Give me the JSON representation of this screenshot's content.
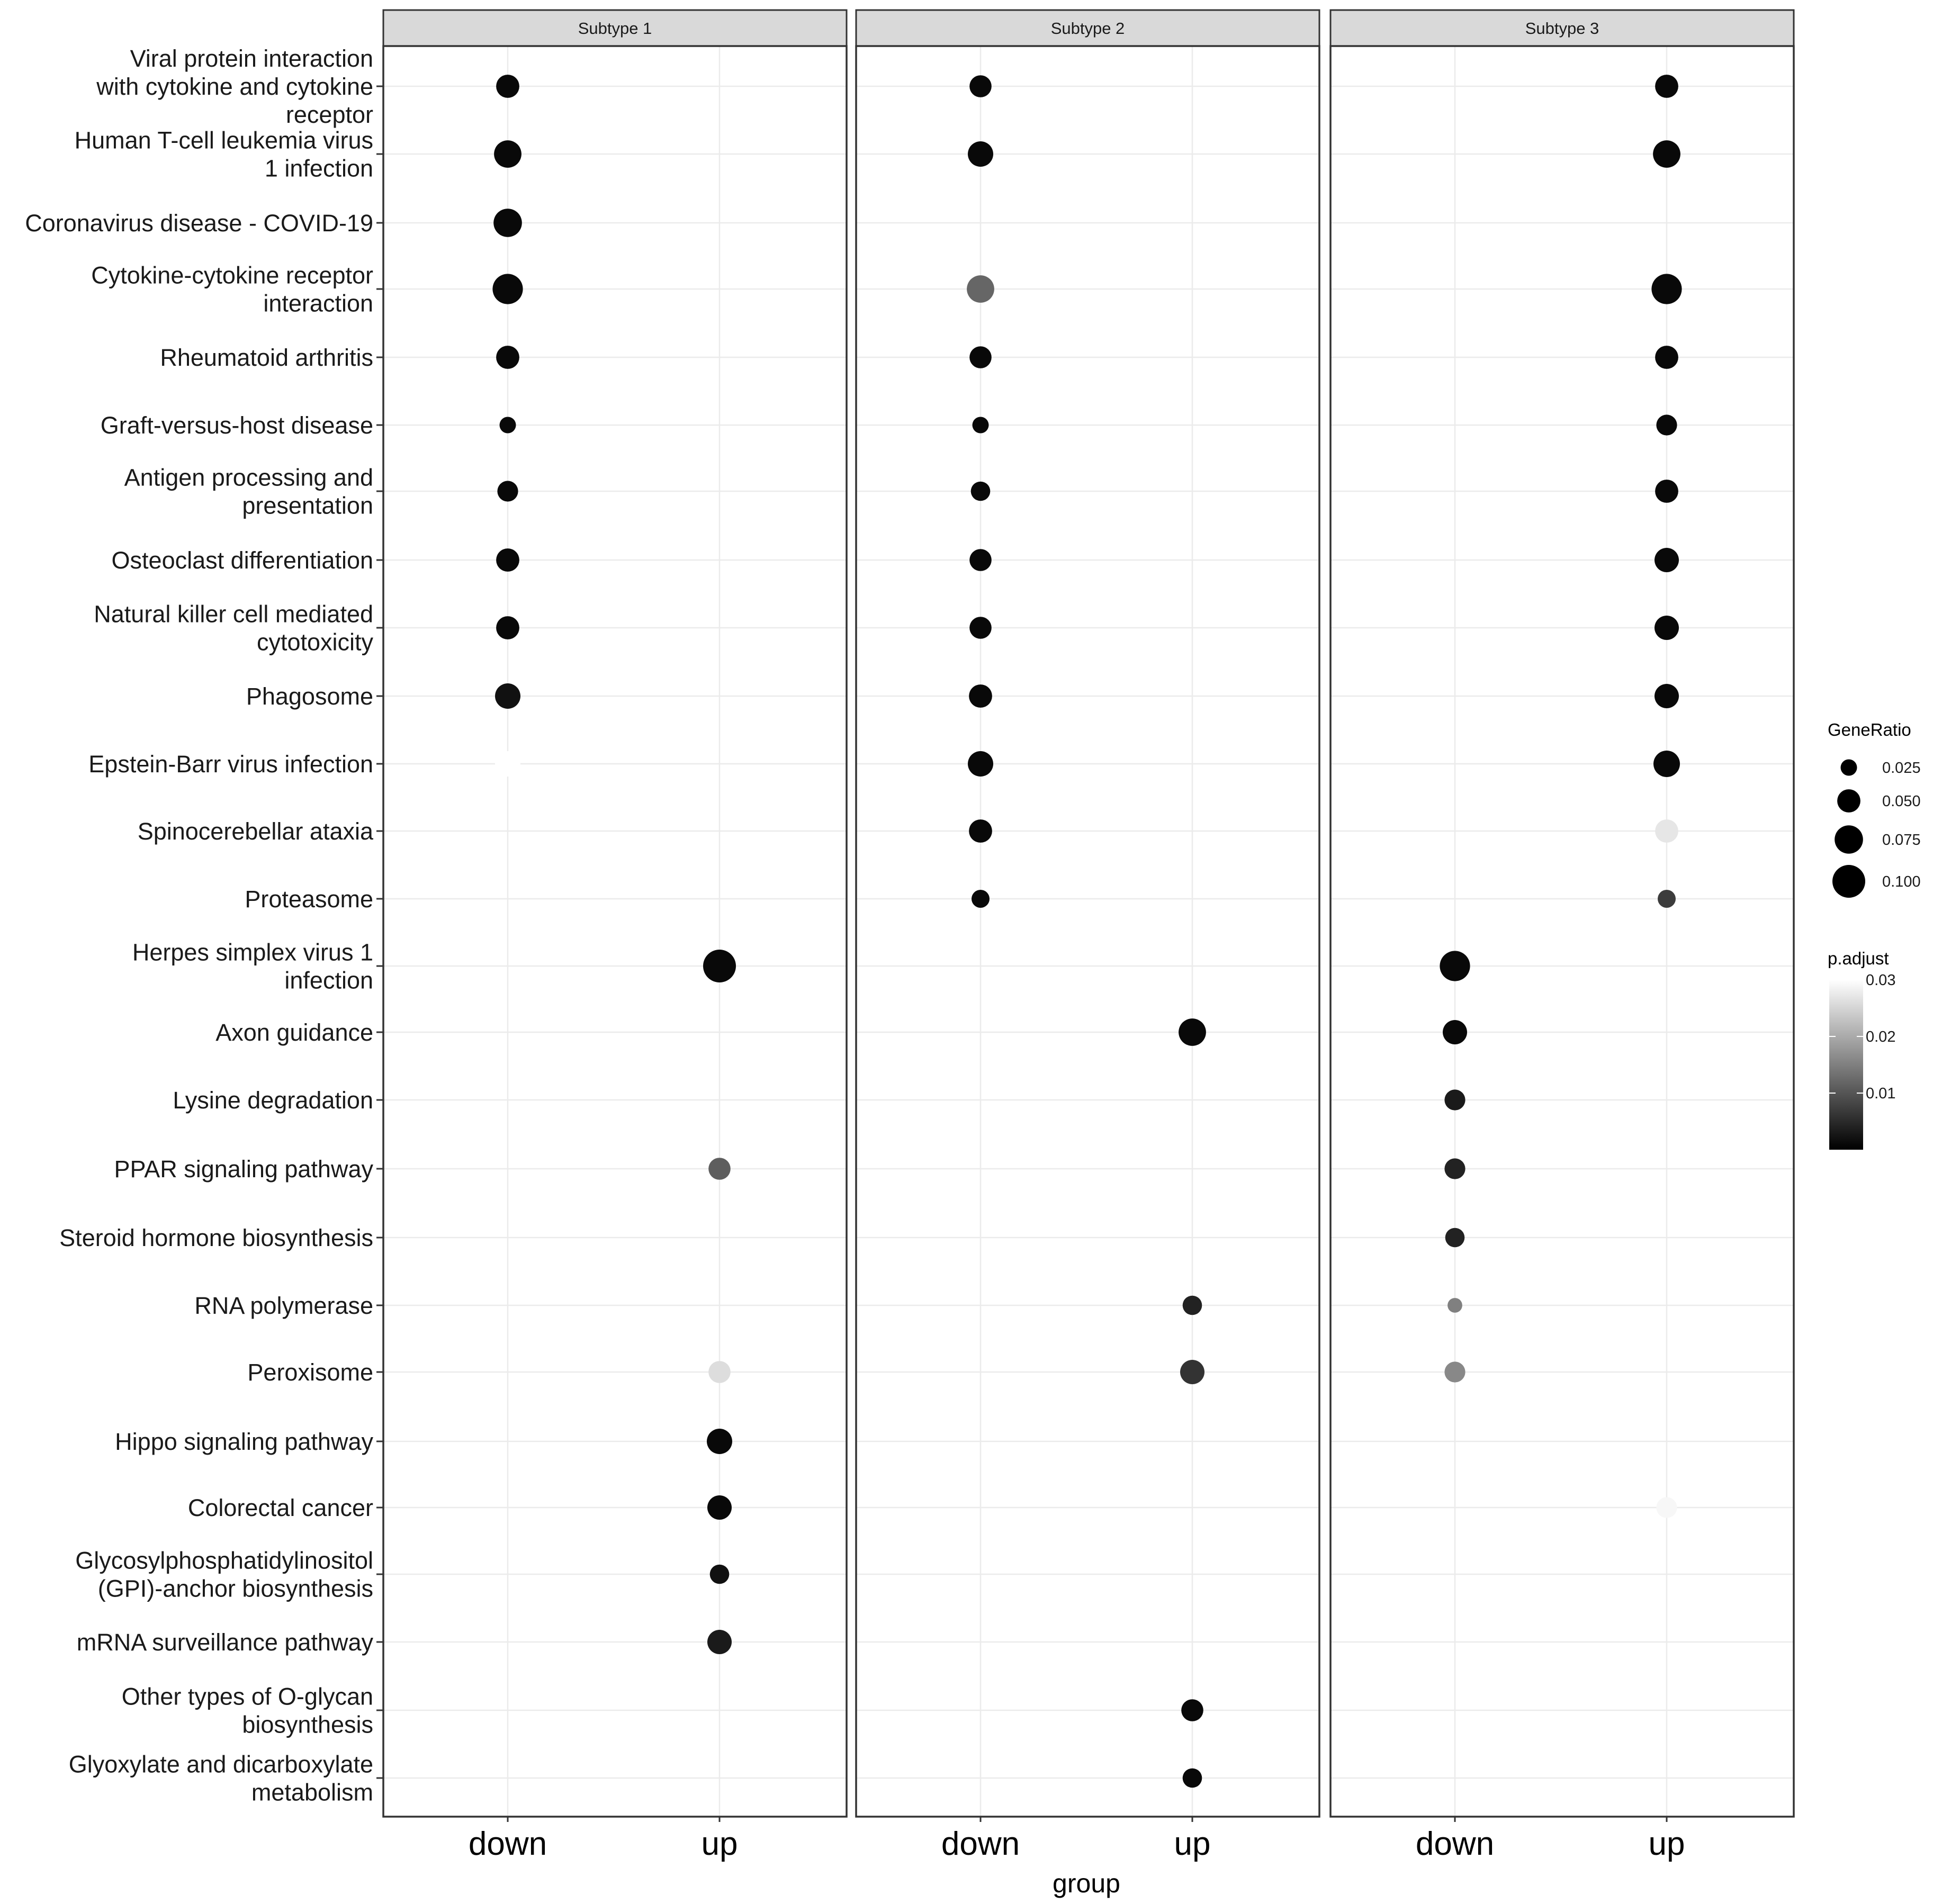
{
  "chart_data": {
    "type": "dotplot",
    "title": "",
    "xlabel": "group",
    "ylabel": "",
    "x_categories": [
      "down",
      "up"
    ],
    "panels": [
      "Subtype  1",
      "Subtype  2",
      "Subtype  3"
    ],
    "y_categories": [
      "Viral protein interaction\nwith cytokine and cytokine\nreceptor",
      "Human T-cell leukemia virus\n1 infection",
      "Coronavirus disease - COVID-19",
      "Cytokine-cytokine receptor\ninteraction",
      "Rheumatoid arthritis",
      "Graft-versus-host disease",
      "Antigen processing and\npresentation",
      "Osteoclast differentiation",
      "Natural killer cell mediated\ncytotoxicity",
      "Phagosome",
      "Epstein-Barr virus infection",
      "Spinocerebellar ataxia",
      "Proteasome",
      "Herpes simplex virus 1\ninfection",
      "Axon guidance",
      "Lysine degradation",
      "PPAR signaling pathway",
      "Steroid hormone biosynthesis",
      "RNA polymerase",
      "Peroxisome",
      "Hippo signaling pathway",
      "Colorectal cancer",
      "Glycosylphosphatidylinositol\n(GPI)-anchor biosynthesis",
      "mRNA surveillance pathway",
      "Other types of O-glycan\nbiosynthesis",
      "Glyoxylate and dicarboxylate\nmetabolism"
    ],
    "points": [
      {
        "panel": 0,
        "group": "down",
        "term": 0,
        "gene_ratio": 0.05,
        "p_adjust": 0.001
      },
      {
        "panel": 0,
        "group": "down",
        "term": 1,
        "gene_ratio": 0.07,
        "p_adjust": 0.001
      },
      {
        "panel": 0,
        "group": "down",
        "term": 2,
        "gene_ratio": 0.075,
        "p_adjust": 0.001
      },
      {
        "panel": 0,
        "group": "down",
        "term": 3,
        "gene_ratio": 0.085,
        "p_adjust": 0.001
      },
      {
        "panel": 0,
        "group": "down",
        "term": 4,
        "gene_ratio": 0.05,
        "p_adjust": 0.001
      },
      {
        "panel": 0,
        "group": "down",
        "term": 5,
        "gene_ratio": 0.025,
        "p_adjust": 0.001
      },
      {
        "panel": 0,
        "group": "down",
        "term": 6,
        "gene_ratio": 0.04,
        "p_adjust": 0.001
      },
      {
        "panel": 0,
        "group": "down",
        "term": 7,
        "gene_ratio": 0.05,
        "p_adjust": 0.001
      },
      {
        "panel": 0,
        "group": "down",
        "term": 8,
        "gene_ratio": 0.05,
        "p_adjust": 0.001
      },
      {
        "panel": 0,
        "group": "down",
        "term": 9,
        "gene_ratio": 0.06,
        "p_adjust": 0.002
      },
      {
        "panel": 0,
        "group": "down",
        "term": 10,
        "gene_ratio": 0.06,
        "p_adjust": 0.034
      },
      {
        "panel": 0,
        "group": "up",
        "term": 13,
        "gene_ratio": 0.1,
        "p_adjust": 0.001
      },
      {
        "panel": 0,
        "group": "up",
        "term": 16,
        "gene_ratio": 0.045,
        "p_adjust": 0.011
      },
      {
        "panel": 0,
        "group": "up",
        "term": 19,
        "gene_ratio": 0.045,
        "p_adjust": 0.026
      },
      {
        "panel": 0,
        "group": "up",
        "term": 20,
        "gene_ratio": 0.06,
        "p_adjust": 0.001
      },
      {
        "panel": 0,
        "group": "up",
        "term": 21,
        "gene_ratio": 0.055,
        "p_adjust": 0.001
      },
      {
        "panel": 0,
        "group": "up",
        "term": 22,
        "gene_ratio": 0.035,
        "p_adjust": 0.002
      },
      {
        "panel": 0,
        "group": "up",
        "term": 23,
        "gene_ratio": 0.055,
        "p_adjust": 0.003
      },
      {
        "panel": 1,
        "group": "down",
        "term": 0,
        "gene_ratio": 0.045,
        "p_adjust": 0.001
      },
      {
        "panel": 1,
        "group": "down",
        "term": 1,
        "gene_ratio": 0.06,
        "p_adjust": 0.001
      },
      {
        "panel": 1,
        "group": "down",
        "term": 3,
        "gene_ratio": 0.07,
        "p_adjust": 0.012
      },
      {
        "panel": 1,
        "group": "down",
        "term": 4,
        "gene_ratio": 0.045,
        "p_adjust": 0.001
      },
      {
        "panel": 1,
        "group": "down",
        "term": 5,
        "gene_ratio": 0.025,
        "p_adjust": 0.001
      },
      {
        "panel": 1,
        "group": "down",
        "term": 6,
        "gene_ratio": 0.035,
        "p_adjust": 0.001
      },
      {
        "panel": 1,
        "group": "down",
        "term": 7,
        "gene_ratio": 0.045,
        "p_adjust": 0.001
      },
      {
        "panel": 1,
        "group": "down",
        "term": 8,
        "gene_ratio": 0.045,
        "p_adjust": 0.001
      },
      {
        "panel": 1,
        "group": "down",
        "term": 9,
        "gene_ratio": 0.05,
        "p_adjust": 0.001
      },
      {
        "panel": 1,
        "group": "down",
        "term": 10,
        "gene_ratio": 0.06,
        "p_adjust": 0.001
      },
      {
        "panel": 1,
        "group": "down",
        "term": 11,
        "gene_ratio": 0.05,
        "p_adjust": 0.001
      },
      {
        "panel": 1,
        "group": "down",
        "term": 12,
        "gene_ratio": 0.03,
        "p_adjust": 0.001
      },
      {
        "panel": 1,
        "group": "up",
        "term": 14,
        "gene_ratio": 0.07,
        "p_adjust": 0.001
      },
      {
        "panel": 1,
        "group": "up",
        "term": 18,
        "gene_ratio": 0.035,
        "p_adjust": 0.004
      },
      {
        "panel": 1,
        "group": "up",
        "term": 19,
        "gene_ratio": 0.055,
        "p_adjust": 0.006
      },
      {
        "panel": 1,
        "group": "up",
        "term": 24,
        "gene_ratio": 0.045,
        "p_adjust": 0.001
      },
      {
        "panel": 1,
        "group": "up",
        "term": 25,
        "gene_ratio": 0.035,
        "p_adjust": 0.001
      },
      {
        "panel": 2,
        "group": "up",
        "term": 0,
        "gene_ratio": 0.05,
        "p_adjust": 0.001
      },
      {
        "panel": 2,
        "group": "up",
        "term": 1,
        "gene_ratio": 0.07,
        "p_adjust": 0.001
      },
      {
        "panel": 2,
        "group": "up",
        "term": 3,
        "gene_ratio": 0.085,
        "p_adjust": 0.001
      },
      {
        "panel": 2,
        "group": "up",
        "term": 4,
        "gene_ratio": 0.05,
        "p_adjust": 0.001
      },
      {
        "panel": 2,
        "group": "up",
        "term": 5,
        "gene_ratio": 0.04,
        "p_adjust": 0.001
      },
      {
        "panel": 2,
        "group": "up",
        "term": 6,
        "gene_ratio": 0.05,
        "p_adjust": 0.001
      },
      {
        "panel": 2,
        "group": "up",
        "term": 7,
        "gene_ratio": 0.055,
        "p_adjust": 0.001
      },
      {
        "panel": 2,
        "group": "up",
        "term": 8,
        "gene_ratio": 0.055,
        "p_adjust": 0.001
      },
      {
        "panel": 2,
        "group": "up",
        "term": 9,
        "gene_ratio": 0.055,
        "p_adjust": 0.001
      },
      {
        "panel": 2,
        "group": "up",
        "term": 10,
        "gene_ratio": 0.065,
        "p_adjust": 0.001
      },
      {
        "panel": 2,
        "group": "up",
        "term": 11,
        "gene_ratio": 0.05,
        "p_adjust": 0.027
      },
      {
        "panel": 2,
        "group": "up",
        "term": 12,
        "gene_ratio": 0.03,
        "p_adjust": 0.007
      },
      {
        "panel": 2,
        "group": "up",
        "term": 21,
        "gene_ratio": 0.04,
        "p_adjust": 0.029
      },
      {
        "panel": 2,
        "group": "down",
        "term": 13,
        "gene_ratio": 0.085,
        "p_adjust": 0.001
      },
      {
        "panel": 2,
        "group": "down",
        "term": 14,
        "gene_ratio": 0.055,
        "p_adjust": 0.001
      },
      {
        "panel": 2,
        "group": "down",
        "term": 15,
        "gene_ratio": 0.04,
        "p_adjust": 0.003
      },
      {
        "panel": 2,
        "group": "down",
        "term": 16,
        "gene_ratio": 0.04,
        "p_adjust": 0.004
      },
      {
        "panel": 2,
        "group": "down",
        "term": 17,
        "gene_ratio": 0.035,
        "p_adjust": 0.004
      },
      {
        "panel": 2,
        "group": "down",
        "term": 18,
        "gene_ratio": 0.02,
        "p_adjust": 0.015
      },
      {
        "panel": 2,
        "group": "down",
        "term": 19,
        "gene_ratio": 0.04,
        "p_adjust": 0.016
      }
    ],
    "legend_size": {
      "title": "GeneRatio",
      "values": [
        0.025,
        0.05,
        0.075,
        0.1
      ],
      "labels": [
        "0.025",
        "0.050",
        "0.075",
        "0.100"
      ]
    },
    "legend_color": {
      "title": "p.adjust",
      "range": [
        0,
        0.03
      ],
      "breaks": [
        0.03,
        0.02,
        0.01
      ],
      "labels": [
        "0.03",
        "0.02",
        "0.01"
      ],
      "low_color": "#000000",
      "high_color": "#ffffff"
    },
    "grid": true,
    "legend_position": "right"
  }
}
